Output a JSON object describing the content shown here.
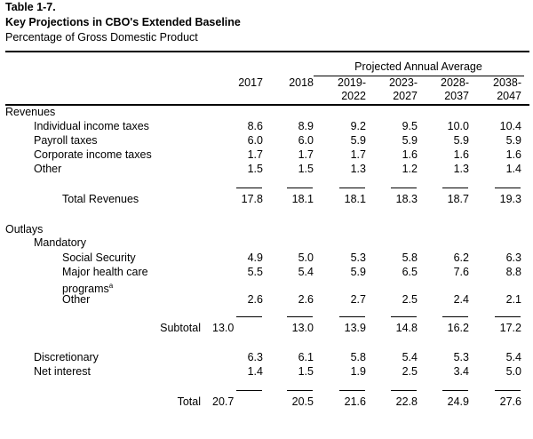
{
  "table_number": "Table 1-7.",
  "title": "Key Projections in CBO's Extended Baseline",
  "subtitle": "Percentage of Gross Domestic Product",
  "group_header": "Projected Annual Average",
  "columns": [
    [
      "2017",
      ""
    ],
    [
      "2018",
      ""
    ],
    [
      "2019-",
      "2022"
    ],
    [
      "2023-",
      "2027"
    ],
    [
      "2028-",
      "2037"
    ],
    [
      "2038-",
      "2047"
    ]
  ],
  "rows": [
    {
      "label": "Revenues",
      "indent": 0,
      "values": []
    },
    {
      "label": "Individual income taxes",
      "indent": 1,
      "values": [
        "8.6",
        "8.9",
        "9.2",
        "9.5",
        "10.0",
        "10.4"
      ]
    },
    {
      "label": "Payroll taxes",
      "indent": 1,
      "values": [
        "6.0",
        "6.0",
        "5.9",
        "5.9",
        "5.9",
        "5.9"
      ]
    },
    {
      "label": "Corporate income taxes",
      "indent": 1,
      "values": [
        "1.7",
        "1.7",
        "1.7",
        "1.6",
        "1.6",
        "1.6"
      ]
    },
    {
      "label": "Other",
      "indent": 1,
      "values": [
        "1.5",
        "1.5",
        "1.3",
        "1.2",
        "1.3",
        "1.4"
      ]
    },
    {
      "label": "Total Revenues",
      "indent": 2,
      "values": [
        "17.8",
        "18.1",
        "18.1",
        "18.3",
        "18.7",
        "19.3"
      ],
      "rule": true
    },
    {
      "label": "Outlays",
      "indent": 0,
      "values": []
    },
    {
      "label": "Mandatory",
      "indent": 1,
      "values": []
    },
    {
      "label": "Social Security",
      "indent": 2,
      "values": [
        "4.9",
        "5.0",
        "5.3",
        "5.8",
        "6.2",
        "6.3"
      ]
    },
    {
      "label": "Major health care",
      "label2": "programs",
      "sup": "a",
      "indent": 2,
      "values": [
        "5.5",
        "5.4",
        "5.9",
        "6.5",
        "7.6",
        "8.8"
      ]
    },
    {
      "label": "Other",
      "indent": 2,
      "values": [
        "2.6",
        "2.6",
        "2.7",
        "2.5",
        "2.4",
        "2.1"
      ]
    },
    {
      "label": "Subtotal",
      "indent": 3,
      "offset_first": "13.0",
      "values": [
        "",
        "13.0",
        "13.9",
        "14.8",
        "16.2",
        "17.2"
      ],
      "rule": true
    },
    {
      "label": "Discretionary",
      "indent": 1,
      "values": [
        "6.3",
        "6.1",
        "5.8",
        "5.4",
        "5.3",
        "5.4"
      ]
    },
    {
      "label": "Net interest",
      "indent": 1,
      "values": [
        "1.4",
        "1.5",
        "1.9",
        "2.5",
        "3.4",
        "5.0"
      ]
    },
    {
      "label": "Total",
      "indent": 3,
      "offset_first": "20.7",
      "values": [
        "",
        "20.5",
        "21.6",
        "22.8",
        "24.9",
        "27.6"
      ],
      "rule": true
    }
  ]
}
